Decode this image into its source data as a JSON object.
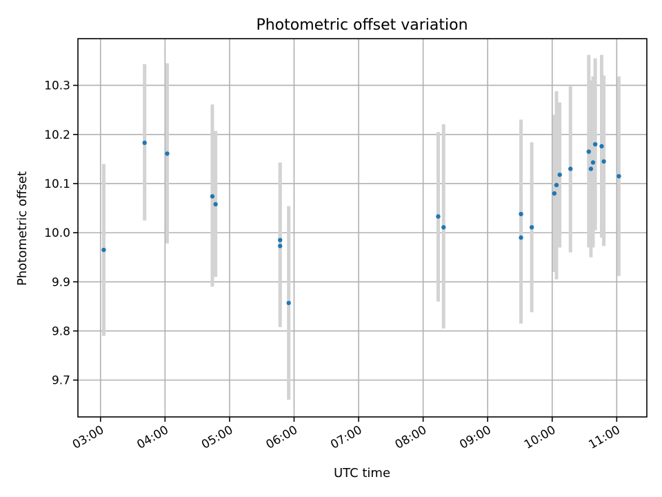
{
  "chart_data": {
    "type": "scatter",
    "title": "Photometric offset variation",
    "xlabel": "UTC time",
    "ylabel": "Photometric offset",
    "x_unit": "hours (UTC)",
    "xlim": [
      "02:39",
      "11:28"
    ],
    "ylim": [
      9.625,
      10.395
    ],
    "x_ticks": [
      "03:00",
      "04:00",
      "05:00",
      "06:00",
      "07:00",
      "08:00",
      "09:00",
      "10:00",
      "11:00"
    ],
    "y_ticks": [
      "9.7",
      "9.8",
      "9.9",
      "10.0",
      "10.1",
      "10.2",
      "10.3"
    ],
    "grid": true,
    "point_color": "#1f77b4",
    "errorbar_color": "#d3d3d3",
    "series": [
      {
        "points": [
          {
            "x": "03:03",
            "y": 9.965,
            "ylow": 9.79,
            "yhigh": 10.14
          },
          {
            "x": "03:41",
            "y": 10.183,
            "ylow": 10.025,
            "yhigh": 10.343
          },
          {
            "x": "04:02",
            "y": 10.161,
            "ylow": 9.978,
            "yhigh": 10.345
          },
          {
            "x": "04:44",
            "y": 10.074,
            "ylow": 9.89,
            "yhigh": 10.261
          },
          {
            "x": "04:47",
            "y": 10.058,
            "ylow": 9.91,
            "yhigh": 10.207
          },
          {
            "x": "05:47",
            "y": 9.985,
            "ylow": 9.828,
            "yhigh": 10.143
          },
          {
            "x": "05:47",
            "y": 9.973,
            "ylow": 9.808,
            "yhigh": 10.138
          },
          {
            "x": "05:55",
            "y": 9.857,
            "ylow": 9.66,
            "yhigh": 10.054
          },
          {
            "x": "08:14",
            "y": 10.033,
            "ylow": 9.86,
            "yhigh": 10.205
          },
          {
            "x": "08:19",
            "y": 10.011,
            "ylow": 9.805,
            "yhigh": 10.221
          },
          {
            "x": "09:31",
            "y": 10.038,
            "ylow": 9.848,
            "yhigh": 10.23
          },
          {
            "x": "09:31",
            "y": 9.99,
            "ylow": 9.815,
            "yhigh": 10.163
          },
          {
            "x": "09:41",
            "y": 10.011,
            "ylow": 9.838,
            "yhigh": 10.184
          },
          {
            "x": "10:02",
            "y": 10.08,
            "ylow": 9.92,
            "yhigh": 10.24
          },
          {
            "x": "10:04",
            "y": 10.097,
            "ylow": 9.905,
            "yhigh": 10.288
          },
          {
            "x": "10:07",
            "y": 10.118,
            "ylow": 9.97,
            "yhigh": 10.265
          },
          {
            "x": "10:17",
            "y": 10.13,
            "ylow": 9.96,
            "yhigh": 10.298
          },
          {
            "x": "10:34",
            "y": 10.165,
            "ylow": 9.97,
            "yhigh": 10.362
          },
          {
            "x": "10:36",
            "y": 10.13,
            "ylow": 9.95,
            "yhigh": 10.31
          },
          {
            "x": "10:38",
            "y": 10.143,
            "ylow": 9.97,
            "yhigh": 10.318
          },
          {
            "x": "10:40",
            "y": 10.18,
            "ylow": 10.005,
            "yhigh": 10.355
          },
          {
            "x": "10:46",
            "y": 10.176,
            "ylow": 9.99,
            "yhigh": 10.362
          },
          {
            "x": "10:48",
            "y": 10.145,
            "ylow": 9.973,
            "yhigh": 10.32
          },
          {
            "x": "11:02",
            "y": 10.115,
            "ylow": 9.912,
            "yhigh": 10.318
          }
        ]
      }
    ]
  }
}
